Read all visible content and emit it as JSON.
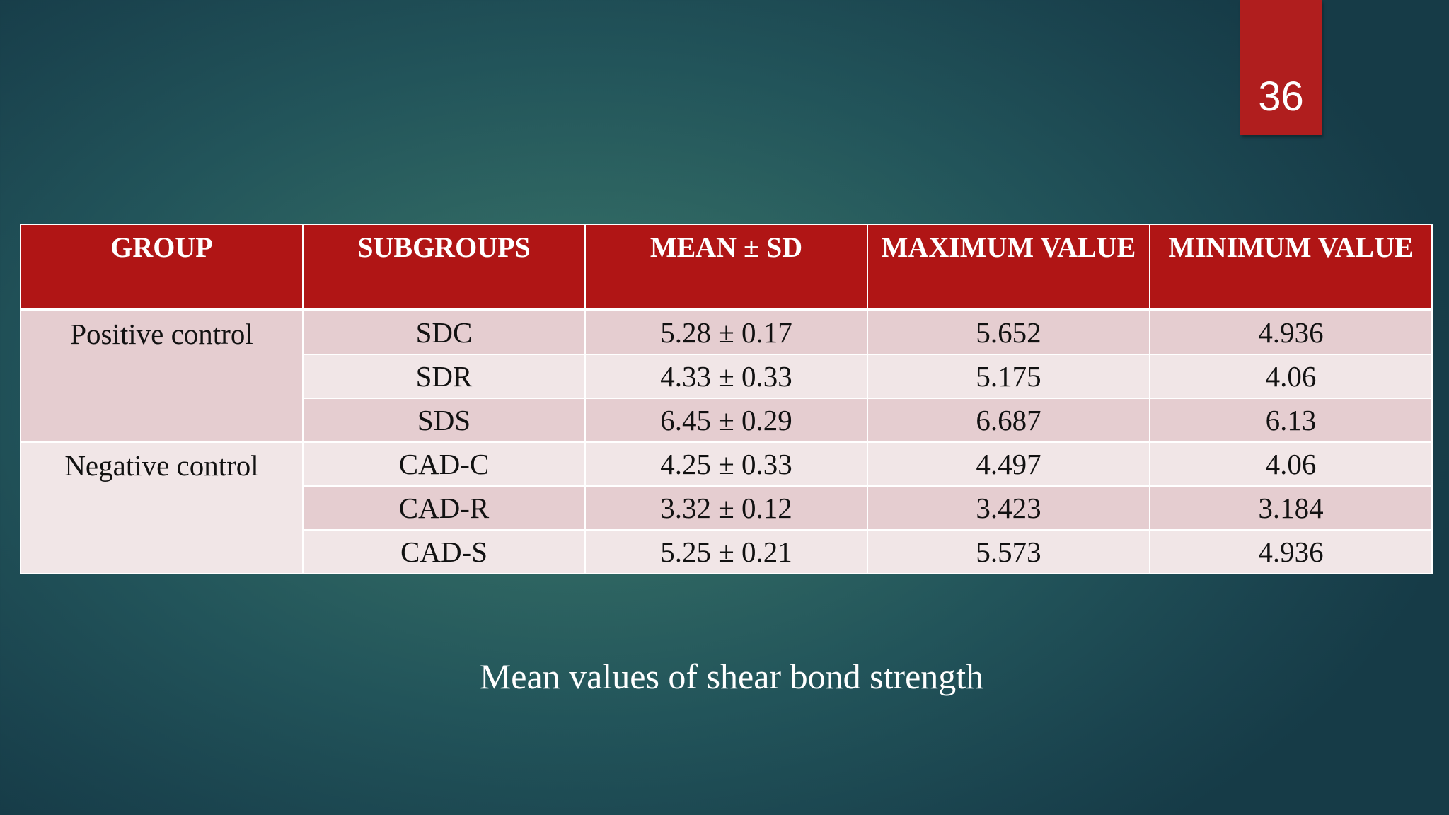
{
  "slide": {
    "number": "36",
    "caption": "Mean values of shear bond strength",
    "accent_color": "#b01515"
  },
  "table": {
    "headers": [
      "GROUP",
      "SUBGROUPS",
      "MEAN ± SD",
      "MAXIMUM VALUE",
      "MINIMUM VALUE"
    ],
    "groups": [
      {
        "name": "Positive control",
        "rows": [
          {
            "subgroup": "SDC",
            "mean_sd": "5.28 ± 0.17",
            "max": "5.652",
            "min": "4.936"
          },
          {
            "subgroup": "SDR",
            "mean_sd": "4.33 ± 0.33",
            "max": "5.175",
            "min": "4.06"
          },
          {
            "subgroup": "SDS",
            "mean_sd": "6.45 ± 0.29",
            "max": "6.687",
            "min": "6.13"
          }
        ]
      },
      {
        "name": "Negative control",
        "rows": [
          {
            "subgroup": "CAD-C",
            "mean_sd": "4.25 ± 0.33",
            "max": "4.497",
            "min": "4.06"
          },
          {
            "subgroup": "CAD-R",
            "mean_sd": "3.32 ± 0.12",
            "max": "3.423",
            "min": "3.184"
          },
          {
            "subgroup": "CAD-S",
            "mean_sd": "5.25 ± 0.21",
            "max": "5.573",
            "min": "4.936"
          }
        ]
      }
    ]
  }
}
